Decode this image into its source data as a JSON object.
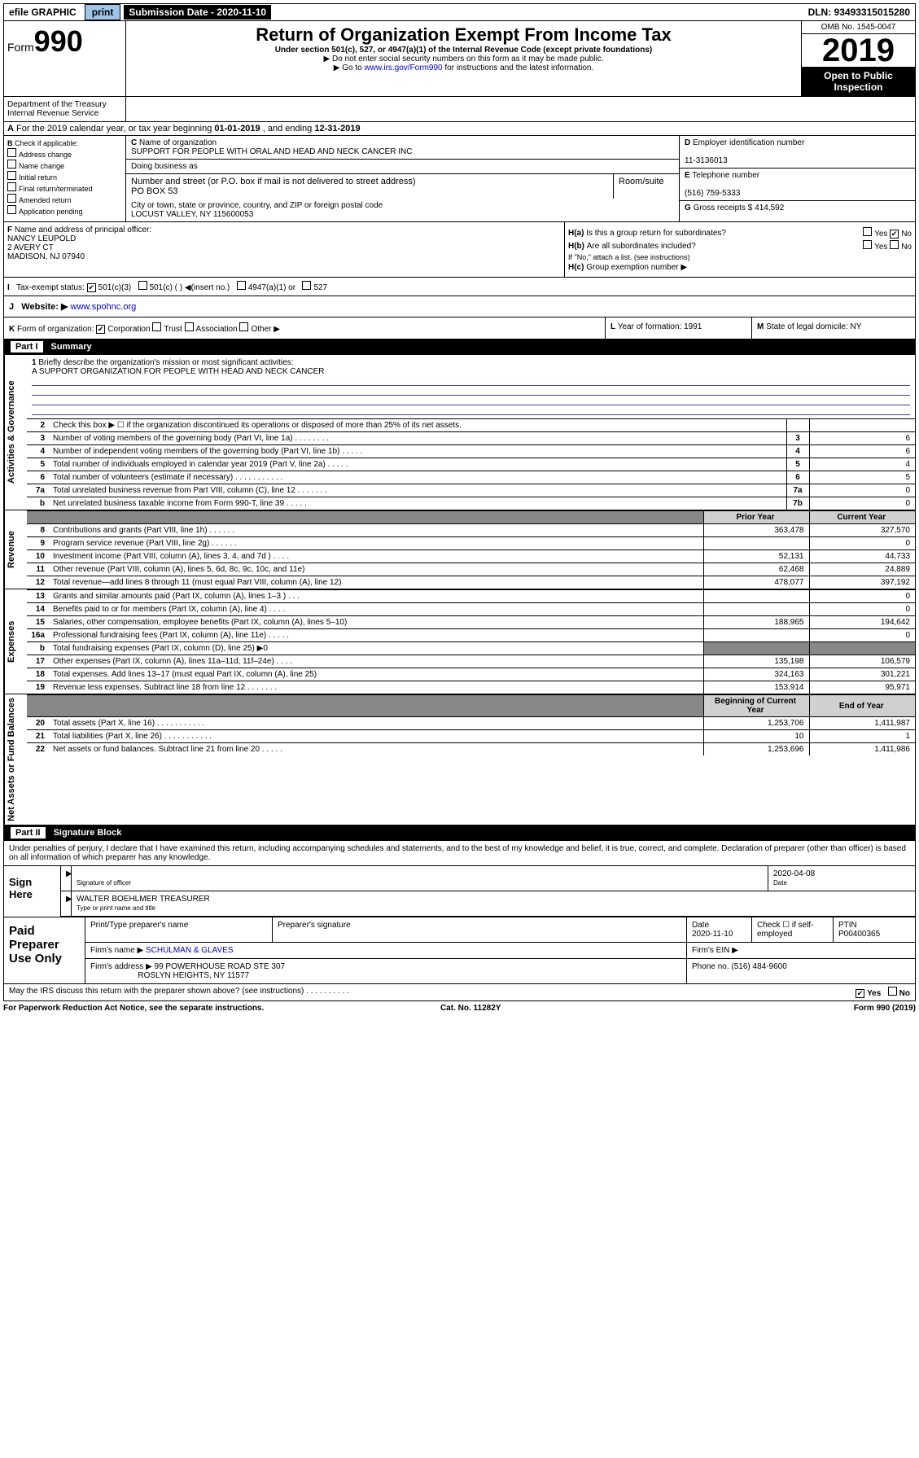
{
  "topbar": {
    "efile": "efile GRAPHIC",
    "print": "print",
    "subLabel": "Submission Date - 2020-11-10",
    "dln": "DLN: 93493315015280"
  },
  "header": {
    "formWord": "Form",
    "formNum": "990",
    "title": "Return of Organization Exempt From Income Tax",
    "sub1": "Under section 501(c), 527, or 4947(a)(1) of the Internal Revenue Code (except private foundations)",
    "sub2": "▶ Do not enter social security numbers on this form as it may be made public.",
    "sub3a": "▶ Go to ",
    "sub3link": "www.irs.gov/Form990",
    "sub3b": " for instructions and the latest information.",
    "omb": "OMB No. 1545-0047",
    "year": "2019",
    "openPublic": "Open to Public Inspection",
    "dept1": "Department of the Treasury",
    "dept2": "Internal Revenue Service"
  },
  "A": {
    "label": "For the 2019 calendar year, or tax year beginning ",
    "begin": "01-01-2019",
    "mid": " , and ending ",
    "end": "12-31-2019"
  },
  "B": {
    "hdr": "Check if applicable:",
    "items": [
      "Address change",
      "Name change",
      "Initial return",
      "Final return/terminated",
      "Amended return",
      "Application pending"
    ]
  },
  "C": {
    "nameLabel": "Name of organization",
    "name": "SUPPORT FOR PEOPLE WITH ORAL AND HEAD AND NECK CANCER INC",
    "dbaLabel": "Doing business as",
    "streetLabel": "Number and street (or P.O. box if mail is not delivered to street address)",
    "room": "Room/suite",
    "street": "PO BOX 53",
    "cityLabel": "City or town, state or province, country, and ZIP or foreign postal code",
    "city": "LOCUST VALLEY, NY  115600053"
  },
  "D": {
    "label": "Employer identification number",
    "val": "11-3136013"
  },
  "E": {
    "label": "Telephone number",
    "val": "(516) 759-5333"
  },
  "G": {
    "label": "Gross receipts $",
    "val": "414,592"
  },
  "F": {
    "label": "Name and address of principal officer:",
    "name": "NANCY LEUPOLD",
    "addr1": "2 AVERY CT",
    "addr2": "MADISON, NJ  07940"
  },
  "H": {
    "a": "Is this a group return for subordinates?",
    "aYN": "No",
    "b": "Are all subordinates included?",
    "bNote": "If \"No,\" attach a list. (see instructions)",
    "c": "Group exemption number ▶"
  },
  "tax": {
    "label": "Tax-exempt status:",
    "opt1": "501(c)(3)",
    "opt2": "501(c) (  ) ◀(insert no.)",
    "opt3": "4947(a)(1) or",
    "opt4": "527"
  },
  "J": {
    "label": "Website: ▶",
    "val": "www.spohnc.org"
  },
  "K": {
    "label": "Form of organization:",
    "opts": [
      "Corporation",
      "Trust",
      "Association",
      "Other ▶"
    ]
  },
  "L": {
    "label": "Year of formation:",
    "val": "1991"
  },
  "M": {
    "label": "State of legal domicile:",
    "val": "NY"
  },
  "partI": {
    "num": "Part I",
    "title": "Summary"
  },
  "mission": {
    "n": "1",
    "label": "Briefly describe the organization's mission or most significant activities:",
    "text": "A SUPPORT ORGANIZATION FOR PEOPLE WITH HEAD AND NECK CANCER"
  },
  "gov": {
    "label": "Activities & Governance",
    "rows": [
      {
        "n": "2",
        "t": "Check this box ▶ ☐ if the organization discontinued its operations or disposed of more than 25% of its net assets."
      },
      {
        "n": "3",
        "t": "Number of voting members of the governing body (Part VI, line 1a) . . . . . . . .",
        "r": "3",
        "v": "6"
      },
      {
        "n": "4",
        "t": "Number of independent voting members of the governing body (Part VI, line 1b) . . . . .",
        "r": "4",
        "v": "6"
      },
      {
        "n": "5",
        "t": "Total number of individuals employed in calendar year 2019 (Part V, line 2a) . . . . .",
        "r": "5",
        "v": "4"
      },
      {
        "n": "6",
        "t": "Total number of volunteers (estimate if necessary) . . . . . . . . . . .",
        "r": "6",
        "v": "5"
      },
      {
        "n": "7a",
        "t": "Total unrelated business revenue from Part VIII, column (C), line 12 . . . . . . .",
        "r": "7a",
        "v": "0"
      },
      {
        "n": "b",
        "t": "Net unrelated business taxable income from Form 990-T, line 39 . . . . .",
        "r": "7b",
        "v": "0"
      }
    ]
  },
  "rev": {
    "label": "Revenue",
    "hdrPrior": "Prior Year",
    "hdrCurr": "Current Year",
    "rows": [
      {
        "n": "8",
        "t": "Contributions and grants (Part VIII, line 1h) . . . . . .",
        "p": "363,478",
        "c": "327,570"
      },
      {
        "n": "9",
        "t": "Program service revenue (Part VIII, line 2g) . . . . . .",
        "p": "",
        "c": "0"
      },
      {
        "n": "10",
        "t": "Investment income (Part VIII, column (A), lines 3, 4, and 7d ) . . . .",
        "p": "52,131",
        "c": "44,733"
      },
      {
        "n": "11",
        "t": "Other revenue (Part VIII, column (A), lines 5, 6d, 8c, 9c, 10c, and 11e)",
        "p": "62,468",
        "c": "24,889"
      },
      {
        "n": "12",
        "t": "Total revenue—add lines 8 through 11 (must equal Part VIII, column (A), line 12)",
        "p": "478,077",
        "c": "397,192"
      }
    ]
  },
  "exp": {
    "label": "Expenses",
    "rows": [
      {
        "n": "13",
        "t": "Grants and similar amounts paid (Part IX, column (A), lines 1–3 ) . . .",
        "p": "",
        "c": "0"
      },
      {
        "n": "14",
        "t": "Benefits paid to or for members (Part IX, column (A), line 4) . . . .",
        "p": "",
        "c": "0"
      },
      {
        "n": "15",
        "t": "Salaries, other compensation, employee benefits (Part IX, column (A), lines 5–10)",
        "p": "188,965",
        "c": "194,642"
      },
      {
        "n": "16a",
        "t": "Professional fundraising fees (Part IX, column (A), line 11e) . . . . .",
        "p": "",
        "c": "0"
      },
      {
        "n": "b",
        "t": "Total fundraising expenses (Part IX, column (D), line 25) ▶0",
        "p": "—dark—",
        "c": "—dark—"
      },
      {
        "n": "17",
        "t": "Other expenses (Part IX, column (A), lines 11a–11d, 11f–24e) . . . .",
        "p": "135,198",
        "c": "106,579"
      },
      {
        "n": "18",
        "t": "Total expenses. Add lines 13–17 (must equal Part IX, column (A), line 25)",
        "p": "324,163",
        "c": "301,221"
      },
      {
        "n": "19",
        "t": "Revenue less expenses. Subtract line 18 from line 12 . . . . . . .",
        "p": "153,914",
        "c": "95,971"
      }
    ]
  },
  "net": {
    "label": "Net Assets or Fund Balances",
    "hdrPrior": "Beginning of Current Year",
    "hdrCurr": "End of Year",
    "rows": [
      {
        "n": "20",
        "t": "Total assets (Part X, line 16) . . . . . . . . . . .",
        "p": "1,253,706",
        "c": "1,411,987"
      },
      {
        "n": "21",
        "t": "Total liabilities (Part X, line 26) . . . . . . . . . . .",
        "p": "10",
        "c": "1"
      },
      {
        "n": "22",
        "t": "Net assets or fund balances. Subtract line 21 from line 20 . . . . .",
        "p": "1,253,696",
        "c": "1,411,986"
      }
    ]
  },
  "partII": {
    "num": "Part II",
    "title": "Signature Block"
  },
  "perjury": "Under penalties of perjury, I declare that I have examined this return, including accompanying schedules and statements, and to the best of my knowledge and belief, it is true, correct, and complete. Declaration of preparer (other than officer) is based on all information of which preparer has any knowledge.",
  "sign": {
    "here": "Sign Here",
    "sigOff": "Signature of officer",
    "date": "2020-04-08",
    "dateLbl": "Date",
    "nameTitle": "WALTER BOEHLMER  TREASURER",
    "nameTitleLbl": "Type or print name and title"
  },
  "paid": {
    "label": "Paid Preparer Use Only",
    "h1": "Print/Type preparer's name",
    "h2": "Preparer's signature",
    "h3": "Date",
    "h3v": "2020-11-10",
    "h4": "Check ☐ if self-employed",
    "h5": "PTIN",
    "h5v": "P00400365",
    "firmName": "Firm's name    ▶",
    "firmNameV": "SCHULMAN & GLAVES",
    "firmEIN": "Firm's EIN ▶",
    "firmAddr": "Firm's address ▶",
    "firmAddrV1": "99 POWERHOUSE ROAD STE 307",
    "firmAddrV2": "ROSLYN HEIGHTS, NY  11577",
    "phone": "Phone no.",
    "phoneV": "(516) 484-9600"
  },
  "discuss": {
    "q": "May the IRS discuss this return with the preparer shown above? (see instructions) . . . . . . . . . .",
    "yes": "Yes",
    "no": "No"
  },
  "bottom": {
    "l": "For Paperwork Reduction Act Notice, see the separate instructions.",
    "c": "Cat. No. 11282Y",
    "r": "Form 990 (2019)"
  }
}
